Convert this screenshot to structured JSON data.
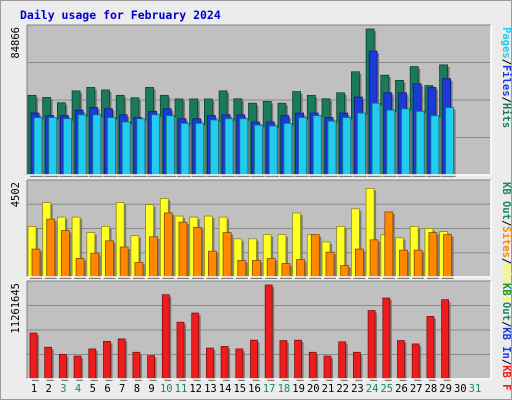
{
  "chart_data": {
    "type": "bar",
    "title": "Daily usage for February 2024",
    "colors": {
      "title": "#0000cc",
      "panel_bg": "#c0c0c0",
      "hits": "#1a7a5a",
      "files": "#1c39d9",
      "pages": "#22ccee",
      "visits": "#ffff22",
      "sites": "#ff8800",
      "kbytes": "#ee1c1c",
      "weekend_day": "#1a8a5a",
      "weekday": "#000000"
    },
    "days": [
      "1",
      "2",
      "3",
      "4",
      "5",
      "6",
      "7",
      "8",
      "9",
      "10",
      "11",
      "12",
      "13",
      "14",
      "15",
      "16",
      "17",
      "18",
      "19",
      "20",
      "21",
      "22",
      "23",
      "24",
      "25",
      "26",
      "27",
      "28",
      "29",
      "30",
      "31"
    ],
    "weekend_days": [
      "3",
      "4",
      "10",
      "11",
      "17",
      "18",
      "24",
      "25",
      "31"
    ],
    "panels": [
      {
        "id": "hits-files-pages",
        "max_label": "84866",
        "ymax": 84866,
        "legend": [
          {
            "text": "Hits",
            "color": "#1a7a5a"
          },
          {
            "text": "/",
            "color": "#000000"
          },
          {
            "text": "Files",
            "color": "#1c39d9"
          },
          {
            "text": "/",
            "color": "#000000"
          },
          {
            "text": "Pages",
            "color": "#22ccee"
          }
        ],
        "series": [
          {
            "name": "Hits",
            "color": "#1a7a5a",
            "values": [
              46300,
              45100,
              42000,
              48900,
              50900,
              49400,
              46300,
              44900,
              50900,
              46300,
              44200,
              44200,
              44200,
              48900,
              44300,
              41700,
              42800,
              41700,
              48500,
              46300,
              44300,
              47800,
              60000,
              84866,
              58000,
              55000,
              63000,
              52000,
              64000
            ]
          },
          {
            "name": "Files",
            "color": "#1c39d9",
            "values": [
              36000,
              34500,
              34500,
              37700,
              39200,
              38500,
              35000,
              33400,
              37000,
              38500,
              32700,
              32700,
              34500,
              35000,
              35000,
              30800,
              30800,
              34500,
              36000,
              36000,
              33400,
              36000,
              45300,
              72000,
              47800,
              47800,
              53000,
              50900,
              56000
            ]
          },
          {
            "name": "Pages",
            "color": "#22ccee",
            "values": [
              33400,
              33400,
              32700,
              35000,
              35000,
              33400,
              30800,
              32700,
              35000,
              34500,
              30000,
              30000,
              32000,
              32700,
              32700,
              29000,
              28500,
              30000,
              33400,
              34500,
              31300,
              33400,
              36000,
              41700,
              37700,
              38500,
              37000,
              34500,
              39200
            ]
          }
        ]
      },
      {
        "id": "visits-sites",
        "max_label": "4502",
        "ymax": 4502,
        "legend": [
          {
            "text": "Visits",
            "color": "#ffff22"
          },
          {
            "text": "/",
            "color": "#000000"
          },
          {
            "text": "Sites",
            "color": "#ff8800"
          },
          {
            "text": "/",
            "color": "#000000"
          },
          {
            "text": "KB Out",
            "color": "#1a8a5a"
          }
        ],
        "series": [
          {
            "name": "Visits",
            "color": "#ffff22",
            "values": [
              2450,
              3600,
              2900,
              2900,
              2150,
              2450,
              3600,
              2000,
              3500,
              3800,
              2950,
              2900,
              2950,
              2900,
              1850,
              1850,
              2050,
              2050,
              3100,
              2050,
              1700,
              2450,
              3300,
              4290,
              2050,
              1900,
              2450,
              2350,
              2200
            ]
          },
          {
            "name": "Sites",
            "color": "#ff8800",
            "values": [
              1350,
              2800,
              2250,
              900,
              1150,
              1750,
              1450,
              700,
              1950,
              3100,
              2650,
              2400,
              1250,
              2150,
              800,
              800,
              900,
              650,
              850,
              2050,
              1200,
              550,
              1350,
              1800,
              3150,
              1300,
              1300,
              2150,
              2050
            ]
          }
        ]
      },
      {
        "id": "kbytes",
        "max_label": "11261645",
        "ymax": 11261645,
        "legend": [
          {
            "text": "KB F",
            "color": "#ee1c1c"
          },
          {
            "text": "/",
            "color": "#000000"
          },
          {
            "text": "KB In",
            "color": "#1c39d9"
          },
          {
            "text": "/",
            "color": "#000000"
          },
          {
            "text": "KB Out",
            "color": "#1a8a5a"
          }
        ],
        "series": [
          {
            "name": "KB F",
            "color": "#ee1c1c",
            "values": [
              5500000,
              3800000,
              2950000,
              2750000,
              3600000,
              4500000,
              4800000,
              3200000,
              2800000,
              10100000,
              6800000,
              7900000,
              3700000,
              3900000,
              3600000,
              4650000,
              11261645,
              4600000,
              4650000,
              3200000,
              2750000,
              4450000,
              3200000,
              8200000,
              9700000,
              4600000,
              4200000,
              7500000,
              9500000
            ]
          }
        ]
      }
    ]
  }
}
